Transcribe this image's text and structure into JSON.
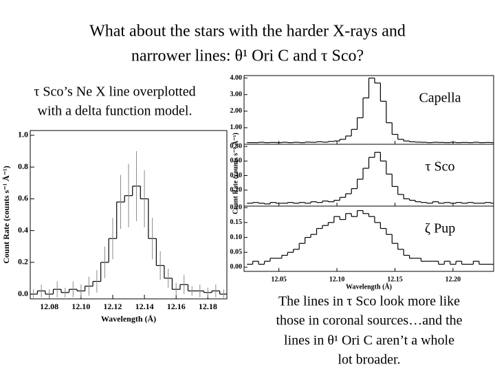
{
  "title": [
    "What about the stars with the harder X-rays and",
    "narrower lines: θ¹ Ori C and τ Sco?"
  ],
  "note_left": [
    "τ Sco’s Ne X line overplotted",
    "with a delta function model."
  ],
  "note_right": [
    "The lines in τ Sco look more like",
    "those in coronal sources…and the",
    "lines in θ¹ Ori C aren’t a whole",
    "lot broader."
  ],
  "chart_data": [
    {
      "type": "step",
      "xlabel": "Wavelength (Å)",
      "ylabel": "Count Rate (counts s⁻¹ Å⁻¹)",
      "xlim": [
        12.068,
        12.192
      ],
      "xticks": [
        12.08,
        {
          "value": 12.1,
          "label": "12.10"
        },
        12.12,
        12.14,
        12.16,
        12.18
      ],
      "ylim": [
        -0.03,
        1.03
      ],
      "yticks": [
        {
          "value": 0,
          "label": "0.0"
        },
        0.2,
        0.4,
        0.6,
        0.8,
        {
          "value": 1,
          "label": "1.0"
        }
      ],
      "x": [
        12.07,
        12.075,
        12.08,
        12.085,
        12.09,
        12.095,
        12.1,
        12.105,
        12.11,
        12.115,
        12.12,
        12.125,
        12.13,
        12.135,
        12.14,
        12.145,
        12.15,
        12.155,
        12.16,
        12.165,
        12.17,
        12.175,
        12.18,
        12.185,
        12.19
      ],
      "values": [
        0,
        0.02,
        0,
        0.03,
        0.01,
        0.03,
        0.02,
        0.05,
        0.08,
        0.2,
        0.35,
        0.58,
        0.62,
        0.68,
        0.6,
        0.35,
        0.18,
        0.1,
        0.03,
        0.06,
        0.02,
        0.02,
        0.01,
        0.02,
        0
      ],
      "errors": [
        0.03,
        0.04,
        0.03,
        0.05,
        0.03,
        0.05,
        0.04,
        0.06,
        0.07,
        0.1,
        0.13,
        0.17,
        0.2,
        0.22,
        0.18,
        0.13,
        0.09,
        0.06,
        0.04,
        0.06,
        0.03,
        0.04,
        0.03,
        0.04,
        0.03
      ],
      "color": "#000000"
    },
    {
      "type": "stacked-step",
      "xlabel": "Wavelength (Å)",
      "ylabel": "Count Rate (counts s⁻¹ Å⁻¹)",
      "xlim": [
        12.02,
        12.235
      ],
      "xticks": [
        12.05,
        {
          "value": 12.1,
          "label": "12.10"
        },
        12.15,
        {
          "value": 12.2,
          "label": "12.20"
        }
      ],
      "x": [
        12.025,
        12.03,
        12.035,
        12.04,
        12.045,
        12.05,
        12.055,
        12.06,
        12.065,
        12.07,
        12.075,
        12.08,
        12.085,
        12.09,
        12.095,
        12.1,
        12.105,
        12.11,
        12.115,
        12.12,
        12.125,
        12.13,
        12.135,
        12.14,
        12.145,
        12.15,
        12.155,
        12.16,
        12.165,
        12.17,
        12.175,
        12.18,
        12.185,
        12.19,
        12.195,
        12.2,
        12.205,
        12.21,
        12.215,
        12.22,
        12.225,
        12.23,
        12.235
      ],
      "series": [
        {
          "name": "Capella",
          "color": "#000000",
          "ylim": [
            0,
            4.15
          ],
          "yticks": [
            {
              "value": 1,
              "label": "1.00"
            },
            {
              "value": 2,
              "label": "2.00"
            },
            {
              "value": 3,
              "label": "3.00"
            },
            {
              "value": 4,
              "label": "4.00"
            }
          ],
          "values": [
            0.1,
            0.1,
            0.12,
            0.1,
            0.11,
            0.1,
            0.12,
            0.1,
            0.12,
            0.1,
            0.13,
            0.12,
            0.15,
            0.13,
            0.17,
            0.2,
            0.3,
            0.5,
            0.9,
            1.6,
            2.8,
            4.0,
            3.7,
            2.6,
            1.3,
            0.6,
            0.3,
            0.2,
            0.15,
            0.13,
            0.12,
            0.1,
            0.12,
            0.11,
            0.1,
            0.12,
            0.1,
            0.11,
            0.1,
            0.12,
            0.1,
            0.11,
            0.1
          ]
        },
        {
          "name": "τ Sco",
          "color": "#000000",
          "ylim": [
            -0.02,
            0.83
          ],
          "yticks": [
            {
              "value": 0.2,
              "label": "0.20"
            },
            {
              "value": 0.4,
              "label": "0.40"
            },
            {
              "value": 0.6,
              "label": "0.60"
            },
            {
              "value": 0.8,
              "label": "0.80"
            }
          ],
          "values": [
            0.02,
            0.03,
            0.02,
            0.01,
            0.03,
            0.02,
            0.02,
            0.03,
            0.02,
            0.03,
            0.02,
            0.04,
            0.03,
            0.05,
            0.04,
            0.06,
            0.1,
            0.15,
            0.22,
            0.35,
            0.5,
            0.65,
            0.72,
            0.6,
            0.42,
            0.25,
            0.14,
            0.08,
            0.06,
            0.04,
            0.03,
            0.02,
            0.04,
            0.02,
            0.03,
            0.02,
            0.03,
            0.02,
            0.03,
            0.02,
            0.02,
            0.03,
            0.02
          ]
        },
        {
          "name": "ζ Pup",
          "color": "#000000",
          "ylim": [
            -0.014,
            0.205
          ],
          "yticks": [
            {
              "value": 0,
              "label": "0.00"
            },
            {
              "value": 0.05,
              "label": "0.05"
            },
            {
              "value": 0.1,
              "label": "0.10"
            },
            {
              "value": 0.15,
              "label": "0.15"
            },
            {
              "value": 0.2,
              "label": "0.20"
            }
          ],
          "values": [
            0.01,
            0.02,
            0.01,
            0.02,
            0.03,
            0.03,
            0.04,
            0.05,
            0.06,
            0.08,
            0.1,
            0.11,
            0.13,
            0.14,
            0.15,
            0.17,
            0.16,
            0.18,
            0.17,
            0.19,
            0.18,
            0.17,
            0.15,
            0.13,
            0.11,
            0.08,
            0.06,
            0.04,
            0.03,
            0.03,
            0.02,
            0.02,
            0.02,
            0.01,
            0.02,
            0.01,
            0.02,
            0.01,
            0.01,
            0.02,
            0.01,
            0.01,
            0.01
          ]
        }
      ]
    }
  ]
}
